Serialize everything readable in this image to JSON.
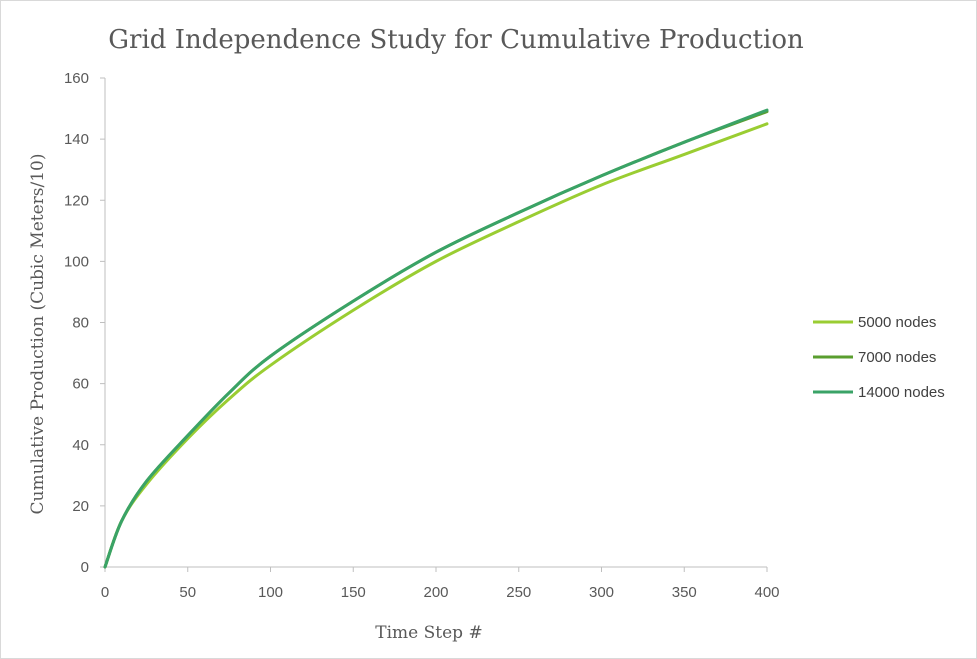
{
  "chart_data": {
    "type": "line",
    "title": "Grid Independence Study for Cumulative Production",
    "xlabel": "Time Step #",
    "ylabel": "Cumulative Production (Cubic Meters/10)",
    "xlim": [
      0,
      400
    ],
    "ylim": [
      0,
      160
    ],
    "xticks": [
      0,
      50,
      100,
      150,
      200,
      250,
      300,
      350,
      400
    ],
    "yticks": [
      0,
      20,
      40,
      60,
      80,
      100,
      120,
      140,
      160
    ],
    "grid": false,
    "legend_position": "right",
    "x": [
      0,
      10,
      25,
      50,
      75,
      100,
      150,
      200,
      250,
      300,
      350,
      400
    ],
    "series": [
      {
        "name": "5000 nodes",
        "color": "#9acd32",
        "values": [
          0,
          15,
          27,
          42,
          55,
          66,
          84,
          100,
          113,
          125,
          135,
          145
        ]
      },
      {
        "name": "7000 nodes",
        "color": "#5a9e2f",
        "values": [
          0,
          15,
          28,
          43,
          57,
          69,
          87,
          103,
          116,
          128,
          139,
          149
        ]
      },
      {
        "name": "14000 nodes",
        "color": "#3aa367",
        "values": [
          0,
          15,
          28,
          43,
          57,
          69,
          87,
          103,
          116,
          128,
          139,
          149.5
        ]
      }
    ]
  }
}
